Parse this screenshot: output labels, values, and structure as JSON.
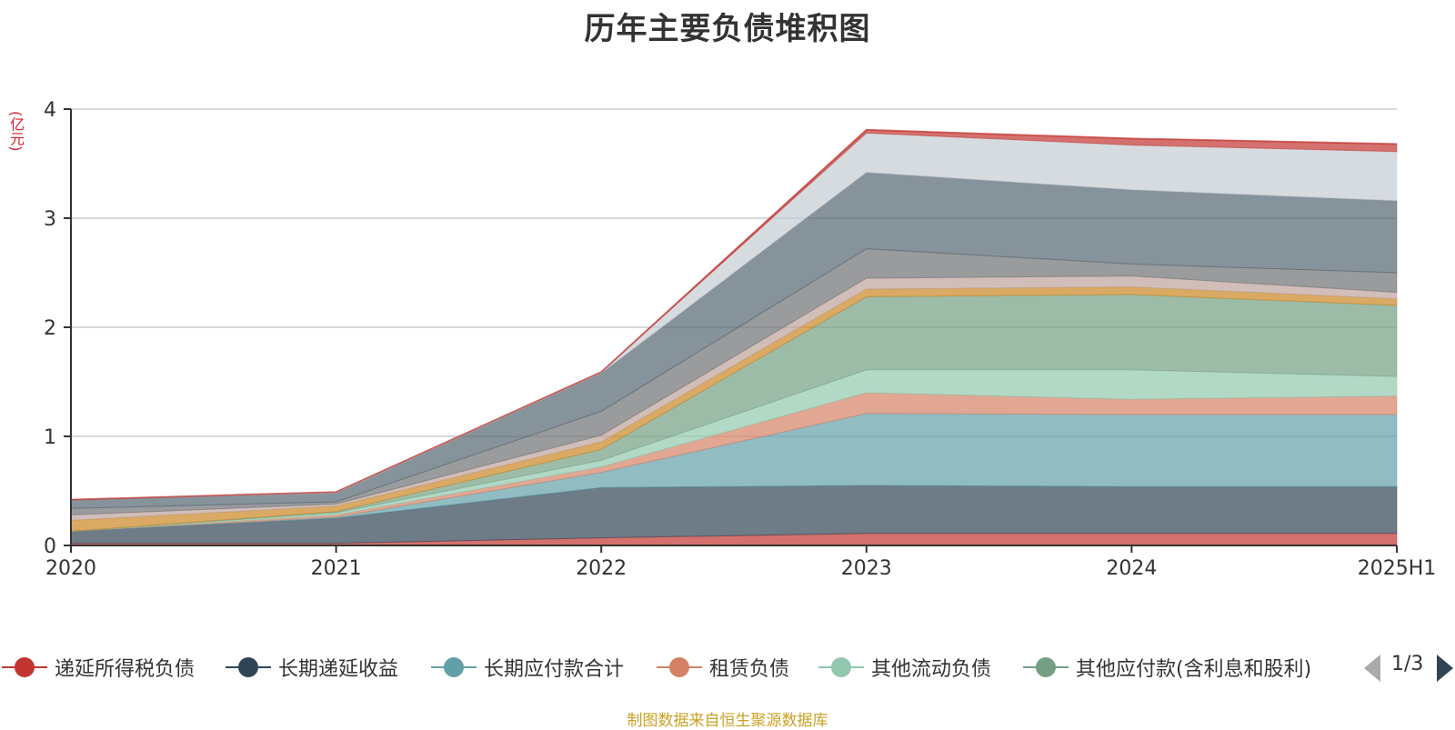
{
  "chart_data": {
    "type": "area",
    "stacked": true,
    "title": "历年主要负债堆积图",
    "y_unit": "(亿元)",
    "categories": [
      "2020",
      "2021",
      "2022",
      "2023",
      "2024",
      "2025H1"
    ],
    "ylim": [
      0,
      4
    ],
    "yticks": [
      0,
      1,
      2,
      3,
      4
    ],
    "grid": true,
    "legend_position": "bottom",
    "series": [
      {
        "name": "递延所得税负债",
        "color": "#c23531",
        "values": [
          0.02,
          0.02,
          0.07,
          0.11,
          0.11,
          0.11
        ]
      },
      {
        "name": "长期递延收益",
        "color": "#2f4554",
        "values": [
          0.11,
          0.23,
          0.46,
          0.44,
          0.43,
          0.43
        ]
      },
      {
        "name": "长期应付款合计",
        "color": "#61a0a8",
        "values": [
          0.0,
          0.01,
          0.14,
          0.66,
          0.66,
          0.66
        ]
      },
      {
        "name": "租赁负债",
        "color": "#d48265",
        "values": [
          0.0,
          0.02,
          0.05,
          0.19,
          0.14,
          0.17
        ]
      },
      {
        "name": "其他流动负债",
        "color": "#91c7ae",
        "values": [
          0.0,
          0.02,
          0.06,
          0.21,
          0.27,
          0.18
        ]
      },
      {
        "name": "其他应付款(含利息和股利)",
        "color": "#749f83",
        "values": [
          0.0,
          0.01,
          0.1,
          0.67,
          0.69,
          0.65
        ]
      },
      {
        "name": "",
        "color": "#ca8622",
        "values": [
          0.1,
          0.05,
          0.07,
          0.07,
          0.07,
          0.06
        ]
      },
      {
        "name": "",
        "color": "#bda29a",
        "values": [
          0.05,
          0.02,
          0.06,
          0.1,
          0.1,
          0.06
        ]
      },
      {
        "name": "",
        "color": "#6e7074",
        "values": [
          0.06,
          0.02,
          0.22,
          0.27,
          0.11,
          0.18
        ]
      },
      {
        "name": "",
        "color": "#546570",
        "values": [
          0.08,
          0.08,
          0.35,
          0.7,
          0.68,
          0.66
        ]
      },
      {
        "name": "",
        "color": "#c4ccd3",
        "values": [
          0.0,
          0.01,
          0.01,
          0.36,
          0.41,
          0.45
        ]
      },
      {
        "name": "",
        "color": "#c23531",
        "values": [
          0.0,
          0.0,
          0.0,
          0.03,
          0.06,
          0.07
        ]
      }
    ]
  },
  "legend": {
    "items": [
      {
        "label": "递延所得税负债",
        "color": "#c23531"
      },
      {
        "label": "长期递延收益",
        "color": "#2f4554"
      },
      {
        "label": "长期应付款合计",
        "color": "#61a0a8"
      },
      {
        "label": "租赁负债",
        "color": "#d48265"
      },
      {
        "label": "其他流动负债",
        "color": "#91c7ae"
      },
      {
        "label": "其他应付款(含利息和股利)",
        "color": "#749f83"
      }
    ],
    "pager": "1/3"
  },
  "source_note": "制图数据来自恒生聚源数据库"
}
